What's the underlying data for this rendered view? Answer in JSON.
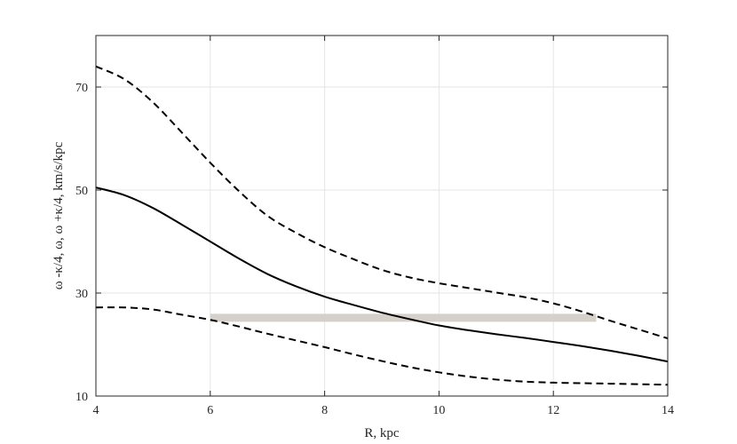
{
  "chart_data": {
    "type": "line",
    "title": "",
    "xlabel": "R, kpc",
    "ylabel": "ω -κ/4, ω, ω +κ/4, km/s/kpc",
    "xlim": [
      4,
      14
    ],
    "ylim": [
      10,
      80
    ],
    "xticks": [
      4,
      6,
      8,
      10,
      12,
      14
    ],
    "yticks": [
      10,
      30,
      50,
      70
    ],
    "grid": true,
    "series": [
      {
        "style": "solid",
        "color": "#000000",
        "x": [
          4,
          4.5,
          5,
          5.5,
          6,
          6.5,
          7,
          7.5,
          8,
          8.5,
          9,
          9.5,
          10,
          10.5,
          11,
          11.5,
          12,
          12.5,
          13,
          13.5,
          14
        ],
        "y": [
          50.5,
          49,
          46.5,
          43.3,
          40,
          36.7,
          33.7,
          31.3,
          29.3,
          27.7,
          26.2,
          24.9,
          23.7,
          22.8,
          22,
          21.3,
          20.5,
          19.7,
          18.8,
          17.8,
          16.7
        ]
      },
      {
        "style": "dashed",
        "color": "#000000",
        "x": [
          4,
          4.5,
          5,
          5.5,
          6,
          6.5,
          7,
          7.5,
          8,
          8.5,
          9,
          9.5,
          10,
          10.5,
          11,
          11.5,
          12,
          12.5,
          13,
          13.5,
          14
        ],
        "y": [
          74,
          71.5,
          67,
          61.2,
          55.3,
          49.8,
          45,
          41.7,
          38.9,
          36.6,
          34.5,
          33,
          31.9,
          31,
          30.1,
          29.2,
          28,
          26.4,
          24.6,
          22.9,
          21.2
        ]
      },
      {
        "style": "dashed",
        "color": "#000000",
        "x": [
          4,
          4.5,
          5,
          5.5,
          6,
          6.5,
          7,
          7.5,
          8,
          8.5,
          9,
          9.5,
          10,
          10.5,
          11,
          11.5,
          12,
          12.5,
          13,
          13.5,
          14
        ],
        "y": [
          27.2,
          27.2,
          26.8,
          25.8,
          24.8,
          23.5,
          22.1,
          20.8,
          19.5,
          18.1,
          16.8,
          15.6,
          14.6,
          13.8,
          13.2,
          12.8,
          12.6,
          12.5,
          12.4,
          12.3,
          12.2
        ]
      }
    ],
    "band": {
      "color": "#d6d0ca",
      "x": [
        6,
        12.75
      ],
      "y": 25.2
    }
  }
}
